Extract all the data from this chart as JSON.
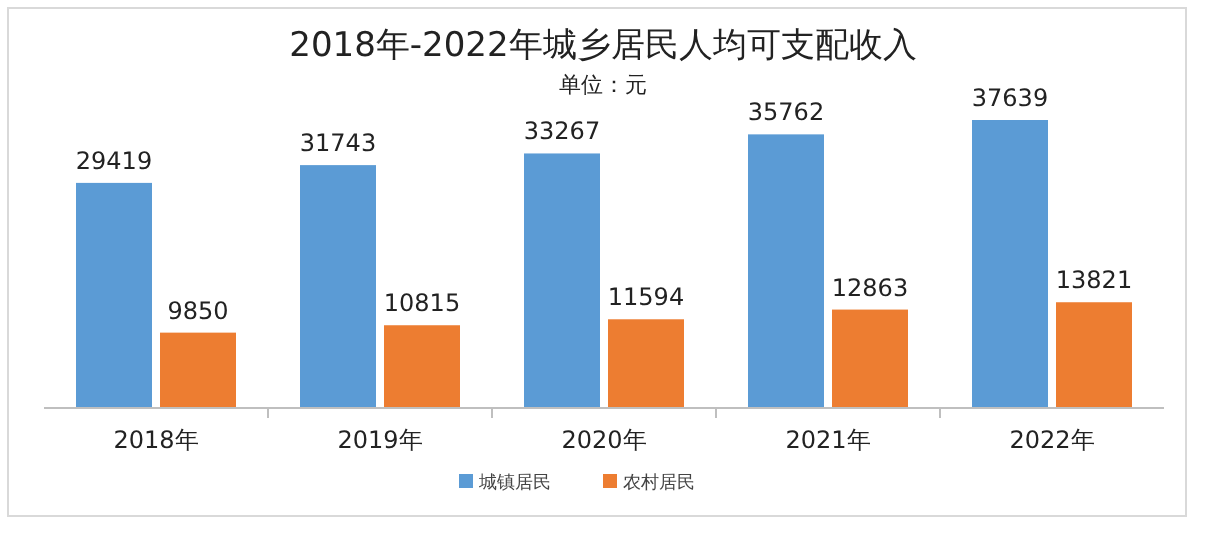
{
  "chart_data": {
    "type": "bar",
    "title": "2018年-2022年城乡居民人均可支配收入",
    "subtitle": "单位：元",
    "categories": [
      "2018年",
      "2019年",
      "2020年",
      "2021年",
      "2022年"
    ],
    "series": [
      {
        "name": "城镇居民",
        "color": "#5b9bd5",
        "values": [
          29419,
          31743,
          33267,
          35762,
          37639
        ]
      },
      {
        "name": "农村居民",
        "color": "#ed7d31",
        "values": [
          9850,
          10815,
          11594,
          12863,
          13821
        ]
      }
    ],
    "data_labels": true,
    "legend": "bottom",
    "grid": false
  }
}
